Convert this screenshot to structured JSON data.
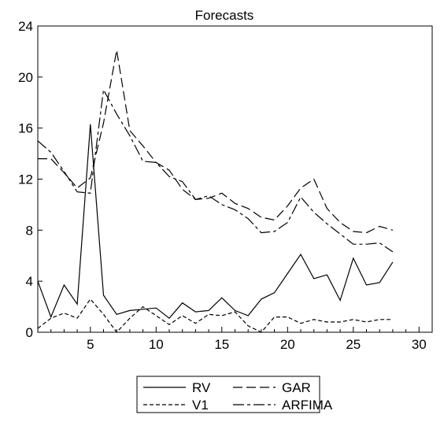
{
  "chart_data": {
    "type": "line",
    "title": "Forecasts",
    "xlabel": "",
    "ylabel": "",
    "xlim": [
      1,
      31
    ],
    "ylim": [
      0,
      24
    ],
    "xticks": [
      5,
      10,
      15,
      20,
      25,
      30
    ],
    "yticks": [
      0,
      4,
      8,
      12,
      16,
      20,
      24
    ],
    "grid": false,
    "legend_position": "bottom-center",
    "x": [
      1,
      2,
      3,
      4,
      5,
      6,
      7,
      8,
      9,
      10,
      11,
      12,
      13,
      14,
      15,
      16,
      17,
      18,
      19,
      20,
      21,
      22,
      23,
      24,
      25,
      26,
      27,
      28
    ],
    "series": [
      {
        "name": "RV",
        "dash": "solid",
        "values": [
          4.0,
          1.2,
          3.7,
          2.2,
          16.3,
          2.9,
          1.4,
          1.7,
          1.8,
          1.9,
          1.1,
          2.3,
          1.6,
          1.7,
          2.7,
          1.7,
          1.3,
          2.6,
          3.1,
          4.6,
          6.1,
          4.2,
          4.5,
          2.5,
          5.8,
          3.7,
          3.9,
          5.5
        ]
      },
      {
        "name": "V1",
        "dash": "short-dash",
        "values": [
          0.3,
          1.1,
          1.5,
          1.1,
          2.6,
          1.4,
          0.0,
          1.1,
          2.0,
          1.3,
          0.6,
          1.3,
          0.7,
          1.4,
          1.3,
          1.6,
          0.5,
          0.0,
          1.2,
          1.2,
          0.7,
          1.0,
          0.8,
          0.8,
          1.0,
          0.8,
          1.0,
          1.0
        ]
      },
      {
        "name": "GAR",
        "dash": "long-dash",
        "values": [
          13.6,
          13.6,
          12.5,
          11.3,
          12.1,
          16.4,
          22.1,
          15.8,
          14.6,
          13.3,
          12.7,
          11.2,
          10.4,
          10.5,
          10.9,
          10.1,
          9.7,
          9.0,
          8.8,
          9.9,
          11.3,
          12.0,
          9.7,
          8.6,
          7.9,
          7.8,
          8.3,
          8.0
        ]
      },
      {
        "name": "ARFIMA",
        "dash": "dash-dot",
        "values": [
          15.0,
          14.1,
          12.6,
          11.0,
          10.9,
          19.0,
          17.1,
          15.4,
          13.4,
          13.3,
          12.2,
          11.8,
          10.4,
          10.7,
          10.0,
          9.6,
          8.9,
          7.8,
          7.9,
          8.6,
          10.6,
          9.4,
          8.5,
          7.7,
          6.9,
          6.9,
          7.0,
          6.3
        ]
      }
    ]
  }
}
